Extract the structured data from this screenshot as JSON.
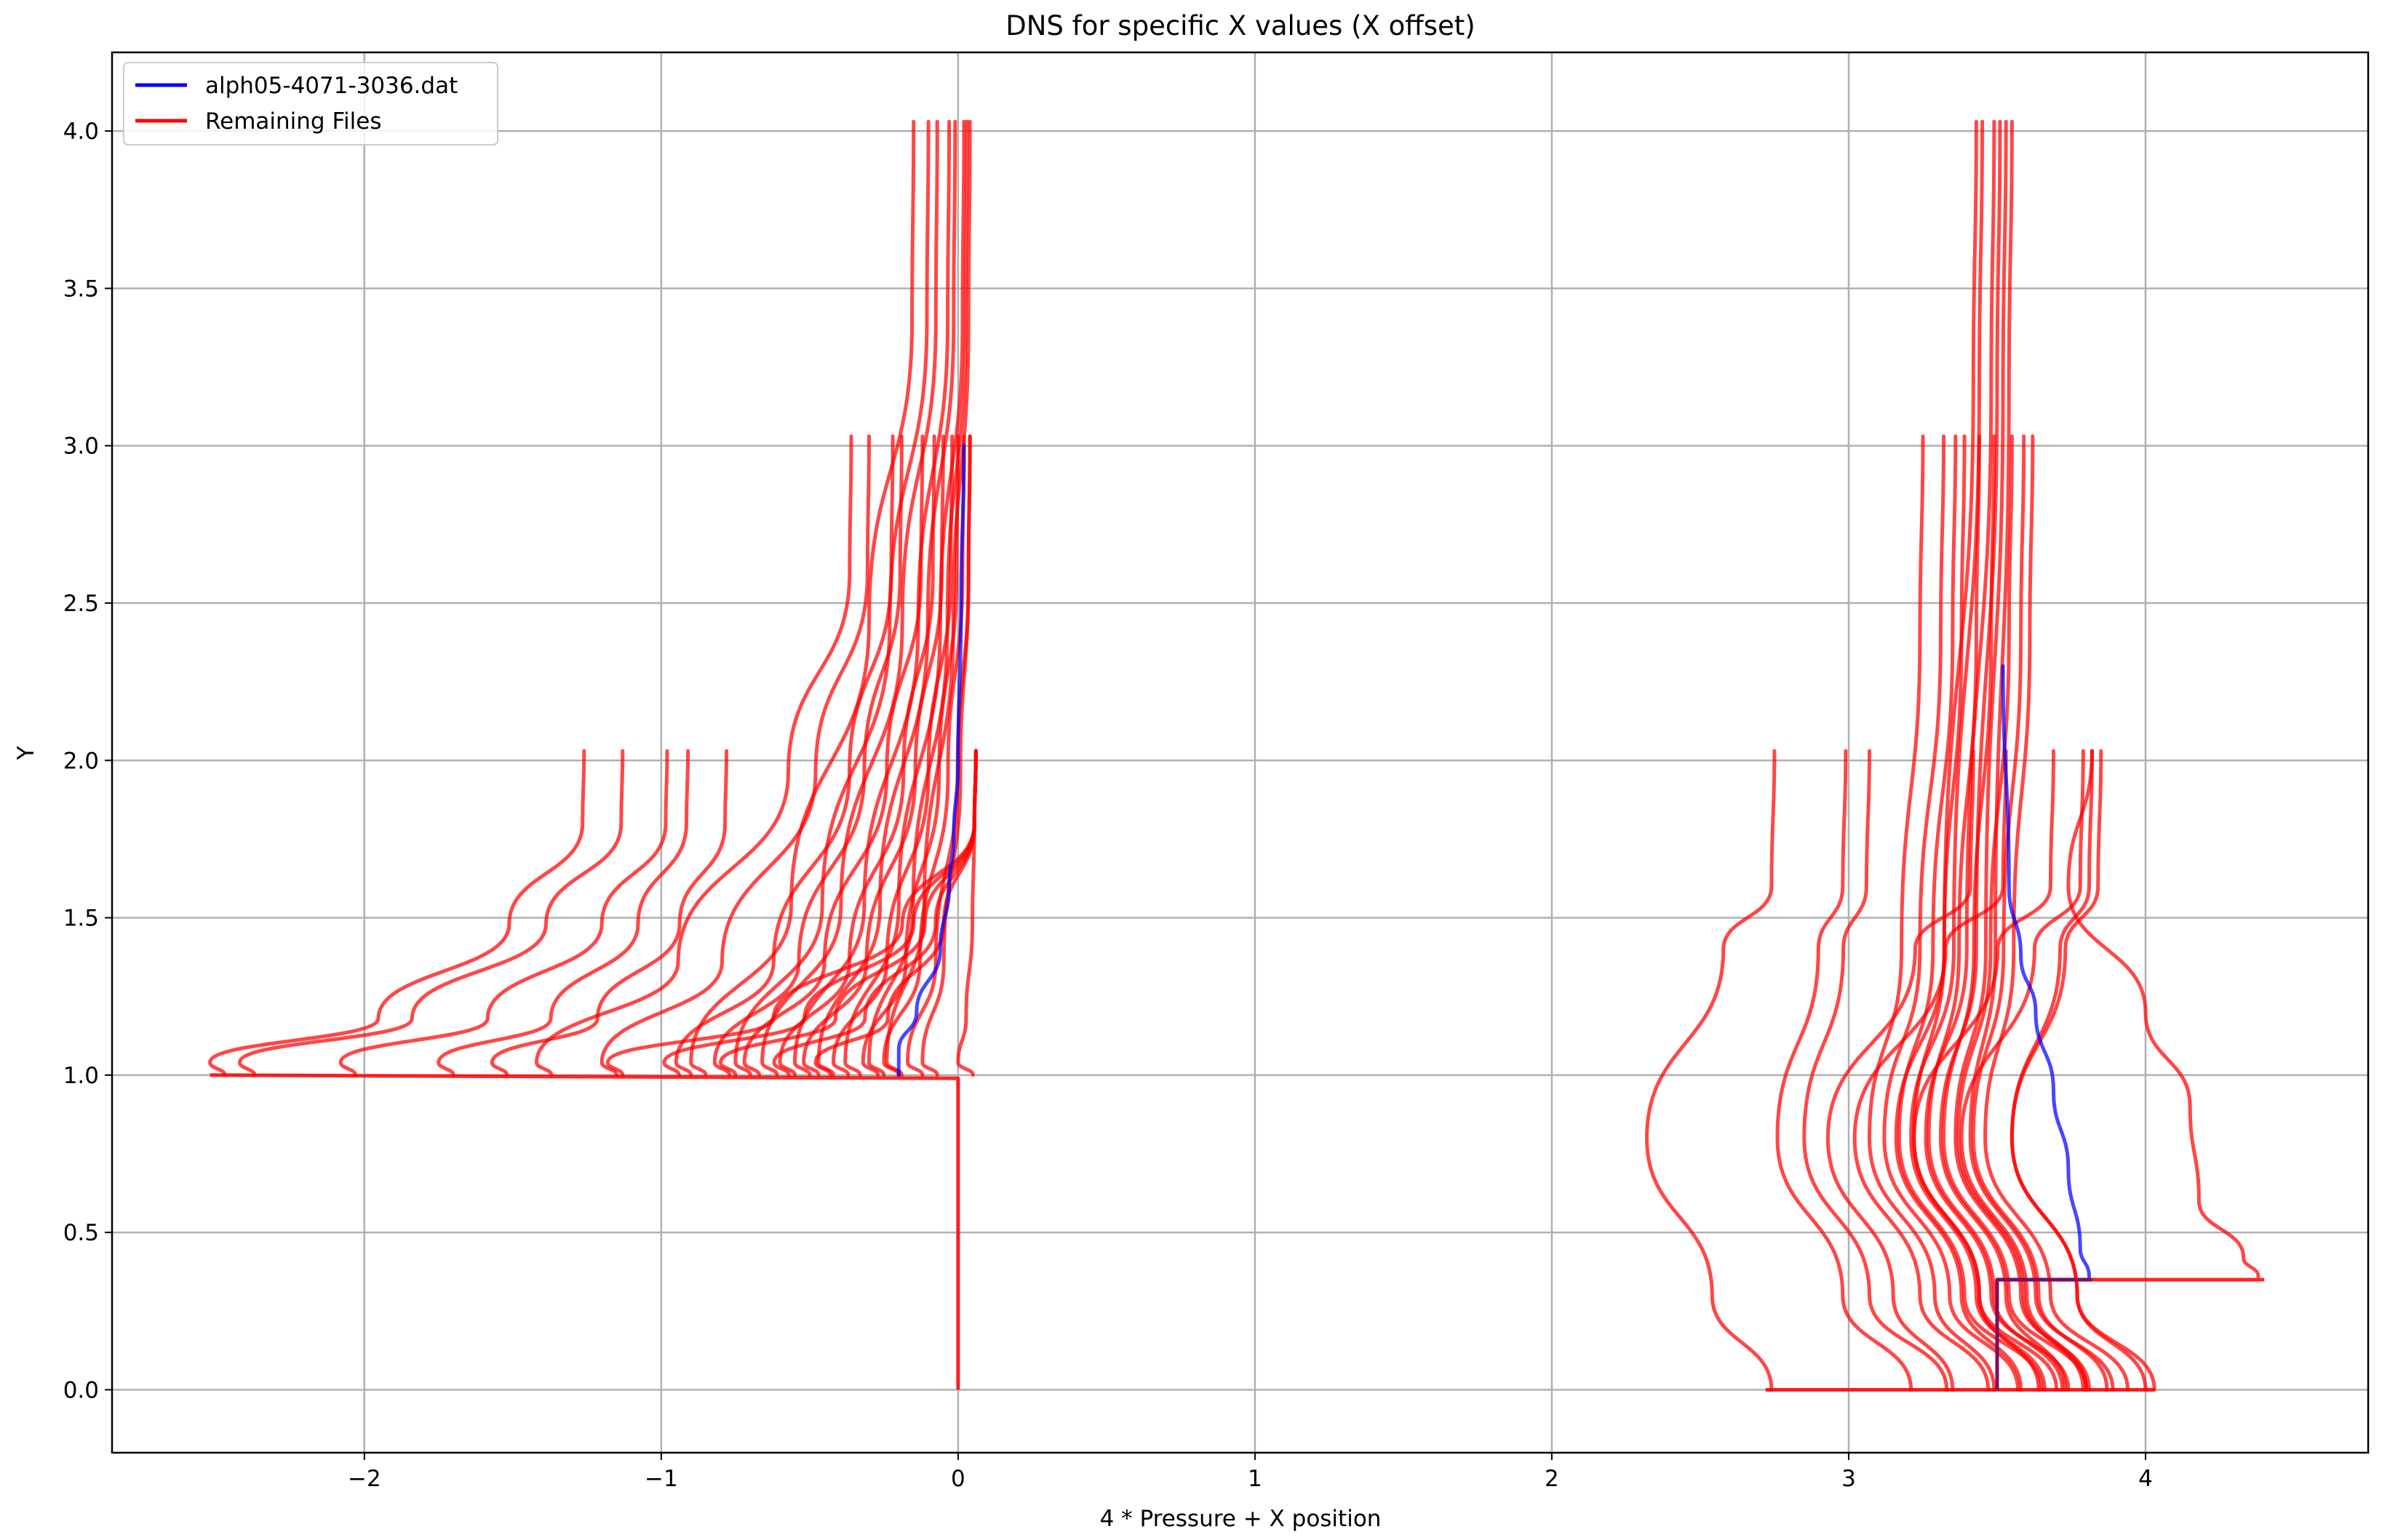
{
  "chart_data": {
    "type": "line",
    "title": "DNS for specific X values (X offset)",
    "xlabel": "4 * Pressure + X position",
    "ylabel": "Y",
    "xlim": [
      -2.85,
      4.75
    ],
    "ylim": [
      -0.2,
      4.25
    ],
    "x_ticks": [
      -2,
      -1,
      0,
      1,
      2,
      3,
      4
    ],
    "x_tick_labels": [
      "−2",
      "−1",
      "0",
      "1",
      "2",
      "3",
      "4"
    ],
    "y_ticks": [
      0.0,
      0.5,
      1.0,
      1.5,
      2.0,
      2.5,
      3.0,
      3.5,
      4.0
    ],
    "y_tick_labels": [
      "0.0",
      "0.5",
      "1.0",
      "1.5",
      "2.0",
      "2.5",
      "3.0",
      "3.5",
      "4.0"
    ],
    "grid": true,
    "legend_position": "top-left",
    "legend": [
      {
        "label": "alph05-4071-3036.dat",
        "color": "#0000ff"
      },
      {
        "label": "Remaining Files",
        "color": "#ff0000"
      }
    ],
    "left_group": {
      "wall_x": 0.0,
      "step_y": 1.0,
      "tops_y2": [
        -1.26,
        -1.13,
        -0.98,
        -0.91,
        -0.78,
        0.06
      ],
      "bases_y2": [
        -2.52,
        -2.42,
        -2.08,
        -1.75,
        -1.57,
        -1.18,
        -0.99,
        -0.8,
        -0.62,
        -0.48,
        0.0
      ],
      "tops_y3": [
        -0.36,
        -0.3,
        -0.22,
        -0.19,
        -0.12,
        -0.08,
        -0.05,
        -0.02,
        0.0,
        0.02,
        0.04
      ],
      "bases_y3": [
        -1.42,
        -1.2,
        -0.95,
        -0.82,
        -0.72,
        -0.6,
        -0.52,
        -0.42,
        -0.32,
        -0.25,
        -0.17,
        -0.12
      ],
      "tops_y4": [
        -0.15,
        -0.1,
        -0.07,
        -0.03,
        -0.01,
        0.02,
        0.03,
        0.04
      ],
      "bases_y4": [
        -0.9,
        -0.75,
        -0.66,
        -0.55,
        -0.47,
        -0.38,
        -0.3,
        -0.24
      ]
    },
    "right_group": {
      "wall_x": 3.5,
      "step_y": 0.35,
      "tops_y2": [
        2.75,
        2.99,
        3.07,
        3.42,
        3.53,
        3.69,
        3.79,
        3.82,
        3.85
      ],
      "bulges_y2": [
        2.32,
        2.76,
        2.85,
        2.93,
        3.02,
        3.22,
        3.38,
        3.55
      ],
      "tops_y3": [
        3.25,
        3.32,
        3.36,
        3.39,
        3.44,
        3.49,
        3.55,
        3.59,
        3.62
      ],
      "bulges_y3": [
        3.07,
        3.12,
        3.17,
        3.22,
        3.27,
        3.32,
        3.37,
        3.42,
        3.46
      ],
      "tops_y4": [
        3.43,
        3.45,
        3.49,
        3.51,
        3.53,
        3.55
      ],
      "bulges_y4": [
        3.16,
        3.21,
        3.26,
        3.31,
        3.36,
        3.41
      ]
    },
    "series": [
      {
        "name": "alph05-4071-3036.dat",
        "color": "#0000ff",
        "segments": [
          {
            "x": [
              -0.2,
              -0.2,
              -0.14,
              -0.06,
              -0.03,
              -0.015,
              0.0,
              0.01,
              0.02
            ],
            "y": [
              1.0,
              1.08,
              1.2,
              1.4,
              1.6,
              1.75,
              2.0,
              2.5,
              3.0
            ]
          },
          {
            "x": [
              3.52,
              3.54,
              3.58,
              3.63,
              3.69,
              3.74,
              3.78,
              3.81
            ],
            "y": [
              2.3,
              1.6,
              1.38,
              1.2,
              0.95,
              0.7,
              0.45,
              0.36
            ]
          }
        ]
      },
      {
        "name": "Remaining Files",
        "color": "#ff0000"
      }
    ]
  }
}
